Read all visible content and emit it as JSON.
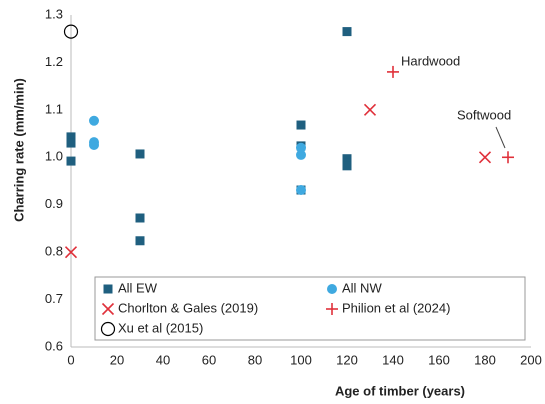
{
  "chart_data": {
    "type": "scatter",
    "x_label": "Age of timber (years)",
    "y_label": "Charring rate (mm/min)",
    "xlim": [
      0,
      200
    ],
    "xticks": [
      0,
      20,
      40,
      60,
      80,
      100,
      120,
      140,
      160,
      180,
      200
    ],
    "ylim": [
      0.6,
      1.3
    ],
    "yticks": [
      0.6,
      0.7,
      0.8,
      0.9,
      {
        "value": 1,
        "label": "1.0"
      },
      1.1,
      1.2,
      1.3
    ],
    "grid": false,
    "legend": "lower center",
    "series": [
      {
        "name": "All EW",
        "color": "#1f5f7f",
        "marker": "square",
        "x": [
          0,
          0,
          0,
          30,
          30,
          30,
          100,
          100,
          100,
          120,
          120,
          120,
          120
        ],
        "values": [
          1.043,
          1.03,
          0.992,
          1.007,
          0.872,
          0.824,
          1.068,
          1.024,
          0.931,
          1.265,
          0.997,
          0.988,
          0.982
        ]
      },
      {
        "name": "All NW",
        "color": "#3fa9e0",
        "marker": "circle",
        "x": [
          10,
          10,
          10,
          100,
          100,
          100
        ],
        "values": [
          1.077,
          1.032,
          1.026,
          1.005,
          1.02,
          0.931
        ]
      },
      {
        "name": "Chorlton & Gales (2019)",
        "color": "#e0303a",
        "marker": "x",
        "x": [
          0,
          130,
          180
        ],
        "values": [
          0.8,
          1.1,
          1.0
        ]
      },
      {
        "name": "Philion et al (2024)",
        "color": "#e0303a",
        "marker": "plus",
        "x": [
          140,
          190
        ],
        "values": [
          1.18,
          1.0
        ]
      },
      {
        "name": "Xu et al (2015)",
        "color": "#000000",
        "marker": "circle-open",
        "x": [
          0
        ],
        "values": [
          1.265
        ]
      }
    ],
    "annotations": [
      "Hardwood",
      "Softwood"
    ]
  }
}
